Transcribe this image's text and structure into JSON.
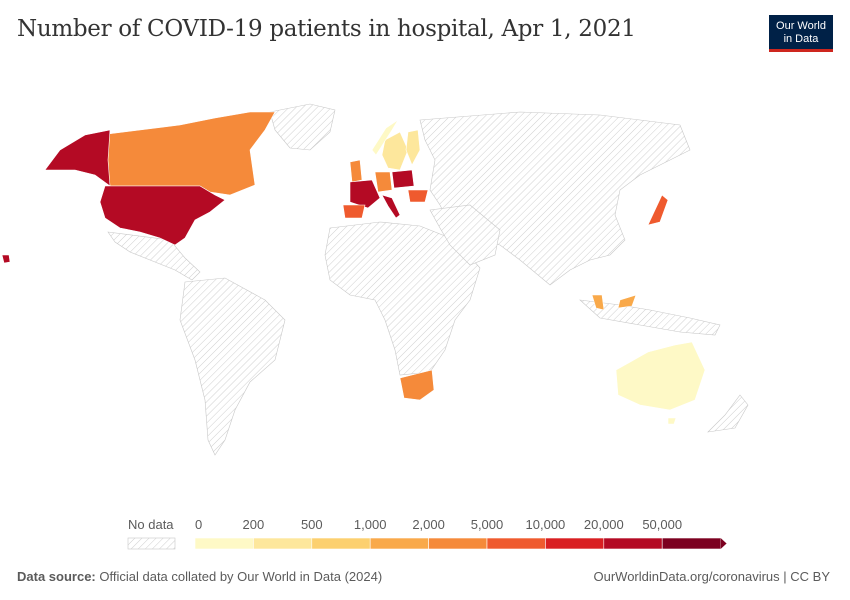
{
  "title": "Number of COVID-19 patients in hospital, Apr 1, 2021",
  "logo": {
    "line1": "Our World",
    "line2": "in Data"
  },
  "legend": {
    "no_data_label": "No data",
    "ticks": [
      "0",
      "200",
      "500",
      "1,000",
      "2,000",
      "5,000",
      "10,000",
      "20,000",
      "50,000"
    ],
    "colors": [
      "#fef9c6",
      "#fde79c",
      "#fcd06f",
      "#f9a94a",
      "#f58a3a",
      "#ef5a2e",
      "#d91f22",
      "#b40a24",
      "#7c0020"
    ]
  },
  "footer": {
    "source_label": "Data source:",
    "source_text": "Official data collated by Our World in Data (2024)",
    "url": "OurWorldinData.org/coronavirus | CC BY"
  },
  "map_regions": [
    {
      "name": "United States",
      "color": "#b40a24"
    },
    {
      "name": "Canada",
      "color": "#f58a3a"
    },
    {
      "name": "France",
      "color": "#b40a24"
    },
    {
      "name": "Italy",
      "color": "#b40a24"
    },
    {
      "name": "Poland",
      "color": "#b40a24"
    },
    {
      "name": "Spain",
      "color": "#ef5a2e"
    },
    {
      "name": "Japan",
      "color": "#ef5a2e"
    },
    {
      "name": "South Africa",
      "color": "#f58a3a"
    },
    {
      "name": "Australia",
      "color": "#fef9c6"
    },
    {
      "name": "Sweden",
      "color": "#fde79c"
    },
    {
      "name": "Finland",
      "color": "#fde79c"
    },
    {
      "name": "United Kingdom",
      "color": "#f58a3a"
    },
    {
      "name": "Malaysia",
      "color": "#f9a94a"
    }
  ]
}
